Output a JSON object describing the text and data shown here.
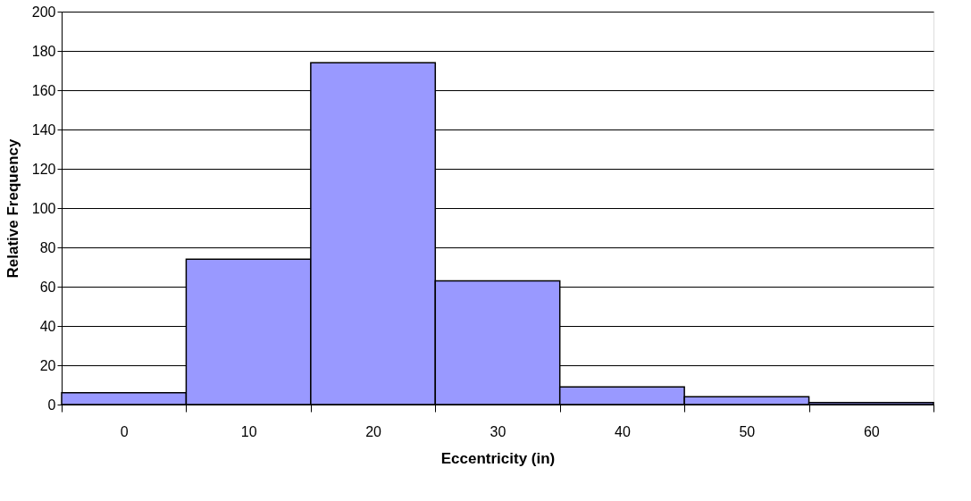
{
  "chart_data": {
    "type": "bar",
    "xlabel": "Eccentricity (in)",
    "ylabel": "Relative Frequency",
    "categories": [
      "0",
      "10",
      "20",
      "30",
      "40",
      "50",
      "60"
    ],
    "values": [
      6,
      74,
      174,
      63,
      9,
      4,
      1
    ],
    "color": "#9999ff",
    "ylim": [
      0,
      200
    ],
    "yticks": [
      0,
      20,
      40,
      60,
      80,
      100,
      120,
      140,
      160,
      180,
      200
    ],
    "grid": "y"
  }
}
